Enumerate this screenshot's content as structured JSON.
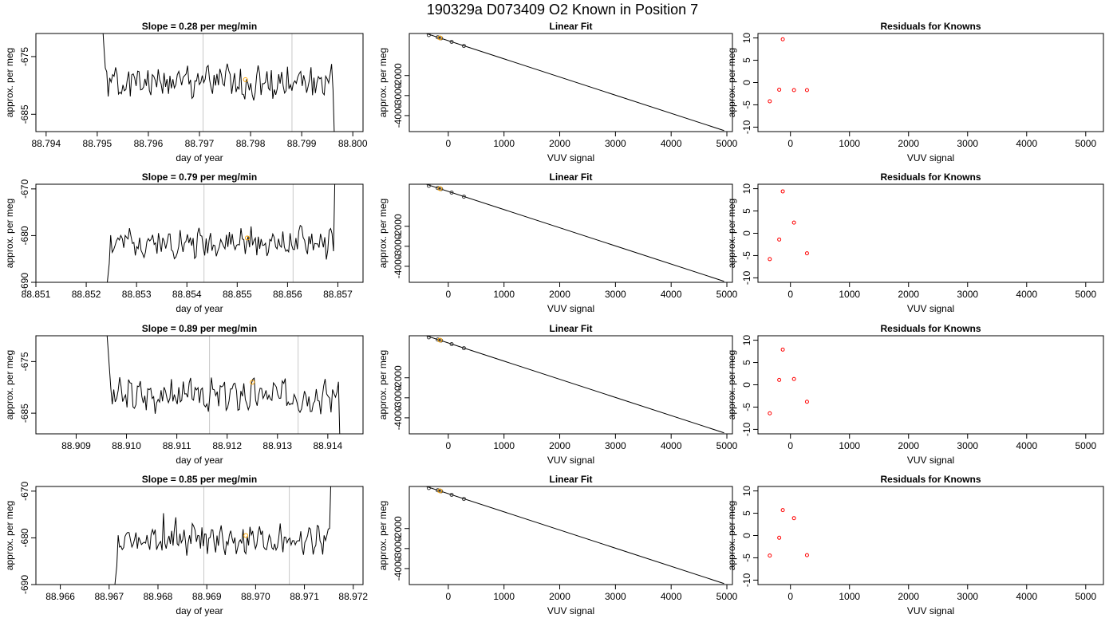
{
  "main_title": "190329a      D073409   O2 Known in Position  7",
  "chart_data": [
    {
      "type": "line",
      "title": "Slope =  0.28  per meg/min",
      "xlabel": "day of year",
      "ylabel": "approx. per meg",
      "xlim": [
        88.7938,
        88.8002
      ],
      "ylim": [
        -688,
        -671
      ],
      "xticks": [
        88.794,
        88.795,
        88.796,
        88.797,
        88.798,
        88.799,
        88.8
      ],
      "xtick_labels": [
        "88.794",
        "88.795",
        "88.796",
        "88.797",
        "88.798",
        "88.799",
        "88.800"
      ],
      "yticks": [
        -675,
        -685
      ],
      "ytick_labels": [
        "-675",
        "-685"
      ],
      "vlines": [
        88.79707,
        88.79881
      ],
      "marker": {
        "x": 88.7979,
        "y": -679.0
      },
      "trace_start": 88.7951,
      "trace_end": 88.7997,
      "base": -679.5,
      "amp": 2.5,
      "spike_start": "down",
      "seed": 1
    },
    {
      "type": "line",
      "title": "Linear Fit",
      "xlabel": "VUV signal",
      "ylabel": "approx. per meg",
      "xlim": [
        -700,
        5100
      ],
      "ylim": [
        -4800,
        100
      ],
      "xticks": [
        0,
        1000,
        2000,
        3000,
        4000,
        5000
      ],
      "xtick_labels": [
        "0",
        "1000",
        "2000",
        "3000",
        "4000",
        "5000"
      ],
      "yticks": [
        -2000,
        -3000,
        -4000
      ],
      "ytick_labels": [
        "-2000",
        "-3000",
        "-4000"
      ],
      "fit_line": {
        "x": [
          -650,
          4950
        ],
        "y": [
          330,
          -4750
        ]
      },
      "points": [
        {
          "x": -350,
          "y": 20
        },
        {
          "x": -190,
          "y": -90
        },
        {
          "x": -130,
          "y": -140
        },
        {
          "x": 60,
          "y": -320
        },
        {
          "x": 280,
          "y": -520
        }
      ],
      "highlight": {
        "x": -150,
        "y": -120
      }
    },
    {
      "type": "scatter",
      "title": "Residuals for Knowns",
      "xlabel": "VUV signal",
      "ylabel": "",
      "xlim": [
        -550,
        5300
      ],
      "ylim": [
        -11,
        11
      ],
      "xticks": [
        0,
        1000,
        2000,
        3000,
        4000,
        5000
      ],
      "xtick_labels": [
        "0",
        "1000",
        "2000",
        "3000",
        "4000",
        "5000"
      ],
      "yticks": [
        10,
        5,
        0,
        -5,
        -10
      ],
      "ytick_labels": [
        "10",
        "5",
        "0",
        "-5",
        "-10"
      ],
      "points": [
        {
          "x": -350,
          "y": -4.2
        },
        {
          "x": -190,
          "y": -1.6
        },
        {
          "x": -130,
          "y": 9.7
        },
        {
          "x": 60,
          "y": -1.7
        },
        {
          "x": 280,
          "y": -1.7
        }
      ]
    },
    {
      "type": "line",
      "title": "Slope =  0.79  per meg/min",
      "xlabel": "day of year",
      "ylabel": "approx. per meg",
      "xlim": [
        88.851,
        88.8575
      ],
      "ylim": [
        -690,
        -669
      ],
      "xticks": [
        88.851,
        88.852,
        88.853,
        88.854,
        88.855,
        88.856,
        88.857
      ],
      "xtick_labels": [
        "88.851",
        "88.852",
        "88.853",
        "88.854",
        "88.855",
        "88.856",
        "88.857"
      ],
      "yticks": [
        -670,
        -680,
        -690
      ],
      "ytick_labels": [
        "-670",
        "-680",
        "-690"
      ],
      "vlines": [
        88.85434,
        88.85611
      ],
      "marker": {
        "x": 88.8552,
        "y": -680.5
      },
      "trace_start": 88.8524,
      "trace_end": 88.857,
      "base": -681.5,
      "amp": 2.5,
      "spike_start": "low",
      "seed": 2
    },
    {
      "type": "line",
      "title": "Linear Fit",
      "xlabel": "VUV signal",
      "ylabel": "approx. per meg",
      "xlim": [
        -700,
        5100
      ],
      "ylim": [
        -4800,
        100
      ],
      "xticks": [
        0,
        1000,
        2000,
        3000,
        4000,
        5000
      ],
      "xtick_labels": [
        "0",
        "1000",
        "2000",
        "3000",
        "4000",
        "5000"
      ],
      "yticks": [
        -2000,
        -3000,
        -4000
      ],
      "ytick_labels": [
        "-2000",
        "-3000",
        "-4000"
      ],
      "fit_line": {
        "x": [
          -650,
          4950
        ],
        "y": [
          330,
          -4750
        ]
      },
      "points": [
        {
          "x": -350,
          "y": 20
        },
        {
          "x": -190,
          "y": -90
        },
        {
          "x": -130,
          "y": -140
        },
        {
          "x": 60,
          "y": -320
        },
        {
          "x": 280,
          "y": -520
        }
      ],
      "highlight": {
        "x": -150,
        "y": -120
      }
    },
    {
      "type": "scatter",
      "title": "Residuals for Knowns",
      "xlabel": "VUV signal",
      "ylabel": "",
      "xlim": [
        -550,
        5300
      ],
      "ylim": [
        -11,
        11
      ],
      "xticks": [
        0,
        1000,
        2000,
        3000,
        4000,
        5000
      ],
      "xtick_labels": [
        "0",
        "1000",
        "2000",
        "3000",
        "4000",
        "5000"
      ],
      "yticks": [
        10,
        5,
        0,
        -5,
        -10
      ],
      "ytick_labels": [
        "10",
        "5",
        "0",
        "-5",
        "-10"
      ],
      "points": [
        {
          "x": -350,
          "y": -5.8
        },
        {
          "x": -190,
          "y": -1.4
        },
        {
          "x": -130,
          "y": 9.4
        },
        {
          "x": 60,
          "y": 2.4
        },
        {
          "x": 280,
          "y": -4.5
        }
      ]
    },
    {
      "type": "line",
      "title": "Slope =  0.89  per meg/min",
      "xlabel": "day of year",
      "ylabel": "approx. per meg",
      "xlim": [
        88.9082,
        88.9147
      ],
      "ylim": [
        -689,
        -670
      ],
      "xticks": [
        88.909,
        88.91,
        88.911,
        88.912,
        88.913,
        88.914
      ],
      "xtick_labels": [
        "88.909",
        "88.910",
        "88.911",
        "88.912",
        "88.913",
        "88.914"
      ],
      "yticks": [
        -675,
        -685
      ],
      "ytick_labels": [
        "-675",
        "-685"
      ],
      "vlines": [
        88.91165,
        88.91341
      ],
      "marker": {
        "x": 88.9125,
        "y": -679.0
      },
      "trace_start": 88.9096,
      "trace_end": 88.9143,
      "base": -681.5,
      "amp": 2.5,
      "spike_start": "down",
      "seed": 3
    },
    {
      "type": "line",
      "title": "Linear Fit",
      "xlabel": "VUV signal",
      "ylabel": "approx. per meg",
      "xlim": [
        -700,
        5100
      ],
      "ylim": [
        -4800,
        100
      ],
      "xticks": [
        0,
        1000,
        2000,
        3000,
        4000,
        5000
      ],
      "xtick_labels": [
        "0",
        "1000",
        "2000",
        "3000",
        "4000",
        "5000"
      ],
      "yticks": [
        -2000,
        -3000,
        -4000
      ],
      "ytick_labels": [
        "-2000",
        "-3000",
        "-4000"
      ],
      "fit_line": {
        "x": [
          -650,
          4950
        ],
        "y": [
          330,
          -4750
        ]
      },
      "points": [
        {
          "x": -350,
          "y": 20
        },
        {
          "x": -190,
          "y": -90
        },
        {
          "x": -130,
          "y": -140
        },
        {
          "x": 60,
          "y": -320
        },
        {
          "x": 280,
          "y": -520
        }
      ],
      "highlight": {
        "x": -150,
        "y": -120
      }
    },
    {
      "type": "scatter",
      "title": "Residuals for Knowns",
      "xlabel": "VUV signal",
      "ylabel": "",
      "xlim": [
        -550,
        5300
      ],
      "ylim": [
        -11,
        11
      ],
      "xticks": [
        0,
        1000,
        2000,
        3000,
        4000,
        5000
      ],
      "xtick_labels": [
        "0",
        "1000",
        "2000",
        "3000",
        "4000",
        "5000"
      ],
      "yticks": [
        10,
        5,
        0,
        -5,
        -10
      ],
      "ytick_labels": [
        "10",
        "5",
        "0",
        "-5",
        "-10"
      ],
      "points": [
        {
          "x": -350,
          "y": -6.4
        },
        {
          "x": -190,
          "y": 1.1
        },
        {
          "x": -130,
          "y": 7.9
        },
        {
          "x": 60,
          "y": 1.3
        },
        {
          "x": 280,
          "y": -3.8
        }
      ]
    },
    {
      "type": "line",
      "title": "Slope =  0.85  per meg/min",
      "xlabel": "day of year",
      "ylabel": "approx. per meg",
      "xlim": [
        88.9655,
        88.9722
      ],
      "ylim": [
        -690,
        -669
      ],
      "xticks": [
        88.966,
        88.967,
        88.968,
        88.969,
        88.97,
        88.971,
        88.972
      ],
      "xtick_labels": [
        "88.966",
        "88.967",
        "88.968",
        "88.969",
        "88.970",
        "88.971",
        "88.972"
      ],
      "yticks": [
        -670,
        -680,
        -690
      ],
      "ytick_labels": [
        "-670",
        "-680",
        "-690"
      ],
      "vlines": [
        88.96894,
        88.97069
      ],
      "marker": {
        "x": 88.9698,
        "y": -679.5
      },
      "trace_start": 88.9671,
      "trace_end": 88.9716,
      "base": -680.5,
      "amp": 2.5,
      "spike_start": "low",
      "seed": 4,
      "noisy": true
    },
    {
      "type": "line",
      "title": "Linear Fit",
      "xlabel": "VUV signal",
      "ylabel": "approx. per meg",
      "xlim": [
        -700,
        5100
      ],
      "ylim": [
        -4800,
        100
      ],
      "xticks": [
        0,
        1000,
        2000,
        3000,
        4000,
        5000
      ],
      "xtick_labels": [
        "0",
        "1000",
        "2000",
        "3000",
        "4000",
        "5000"
      ],
      "yticks": [
        -2000,
        -3000,
        -4000
      ],
      "ytick_labels": [
        "-2000",
        "-3000",
        "-4000"
      ],
      "fit_line": {
        "x": [
          -650,
          4950
        ],
        "y": [
          330,
          -4750
        ]
      },
      "points": [
        {
          "x": -350,
          "y": 20
        },
        {
          "x": -190,
          "y": -90
        },
        {
          "x": -130,
          "y": -140
        },
        {
          "x": 60,
          "y": -320
        },
        {
          "x": 280,
          "y": -520
        }
      ],
      "highlight": {
        "x": -150,
        "y": -120
      }
    },
    {
      "type": "scatter",
      "title": "Residuals for Knowns",
      "xlabel": "VUV signal",
      "ylabel": "",
      "xlim": [
        -550,
        5300
      ],
      "ylim": [
        -11,
        11
      ],
      "xticks": [
        0,
        1000,
        2000,
        3000,
        4000,
        5000
      ],
      "xtick_labels": [
        "0",
        "1000",
        "2000",
        "3000",
        "4000",
        "5000"
      ],
      "yticks": [
        10,
        5,
        0,
        -5,
        -10
      ],
      "ytick_labels": [
        "10",
        "5",
        "0",
        "-5",
        "-10"
      ],
      "points": [
        {
          "x": -350,
          "y": -4.5
        },
        {
          "x": -190,
          "y": -0.5
        },
        {
          "x": -130,
          "y": 5.7
        },
        {
          "x": 60,
          "y": 3.9
        },
        {
          "x": 280,
          "y": -4.4
        }
      ]
    }
  ],
  "colors": {
    "trace": "#000000",
    "vline": "#c8c8c8",
    "marker": "#ffa500",
    "residual_point": "#ff0000",
    "fit_point": "#333333"
  }
}
